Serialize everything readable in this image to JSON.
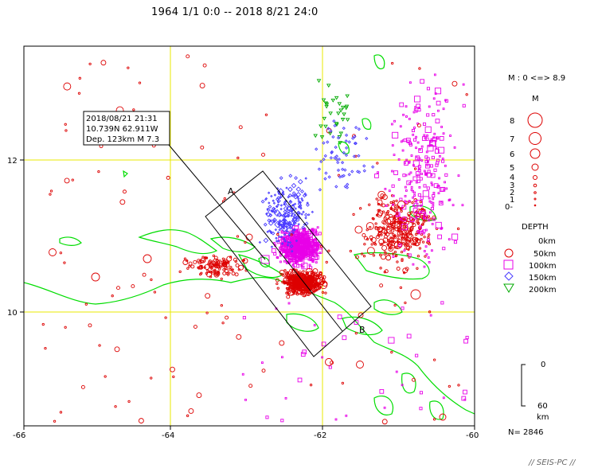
{
  "title": "1964 1/1 0:0 -- 2018 8/21 24:0",
  "annotation": {
    "line1": "2018/08/21 21:31",
    "line2": "10.739N  62.911W",
    "line3": "Dep. 123km   M 7.3"
  },
  "section": {
    "start_label": "A",
    "end_label": "B"
  },
  "axes": {
    "x_ticks": [
      "-66",
      "-64",
      "-62",
      "-60"
    ],
    "y_ticks": [
      "12",
      "10"
    ]
  },
  "magnitude_legend": {
    "range": "M : 0 <=> 8.9",
    "heading": "M",
    "labels": [
      "8",
      "7",
      "6",
      "5",
      "4",
      "3",
      "2",
      "1",
      "0-"
    ]
  },
  "depth_legend": {
    "heading": "DEPTH",
    "items": [
      {
        "label": "0km",
        "symbol": "circle-icon",
        "color": "#dd0000"
      },
      {
        "label": "50km",
        "symbol": "circle-icon",
        "color": "#dd0000"
      },
      {
        "label": "100km",
        "symbol": "square-icon",
        "color": "#e800e8"
      },
      {
        "label": "150km",
        "symbol": "diamond-icon",
        "color": "#4a3cff"
      },
      {
        "label": "200km",
        "symbol": "triangle-icon",
        "color": "#00aa00"
      }
    ]
  },
  "depth_scale": {
    "top": "0",
    "bottom": "60",
    "unit": "km"
  },
  "count": "N= 2846",
  "credit": "// SEIS-PC //",
  "colors": {
    "grid": "#e8e800",
    "coast": "#00dd00",
    "shallow": "#dd0000",
    "intermediate": "#e800e8",
    "deep": "#4a3cff",
    "very_deep": "#00aa00"
  }
}
